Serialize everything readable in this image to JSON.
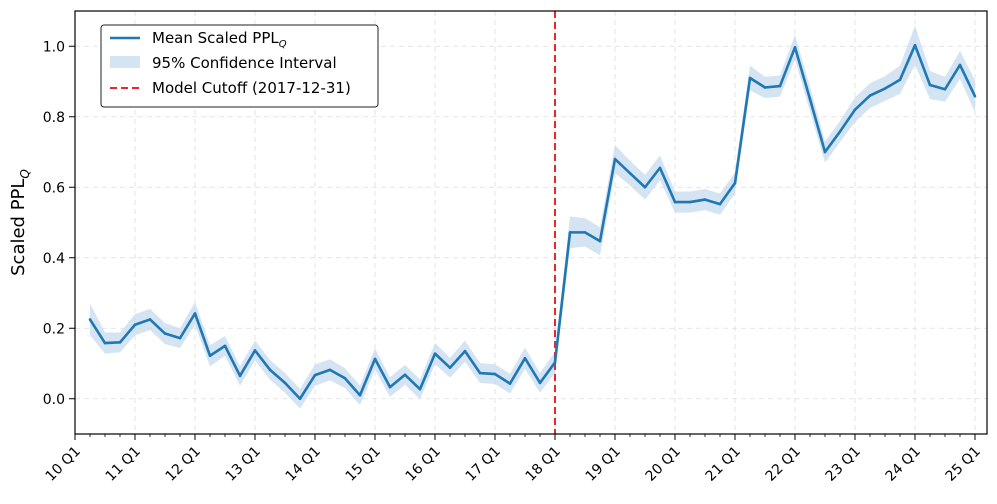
{
  "chart_data": {
    "type": "line",
    "ylabel": "Scaled PPL",
    "ylabel_subscript": "Q",
    "ylim": [
      -0.1,
      1.1
    ],
    "yticks": [
      0.0,
      0.2,
      0.4,
      0.6,
      0.8,
      1.0
    ],
    "ytick_labels": [
      "0.0",
      "0.2",
      "0.4",
      "0.6",
      "0.8",
      "1.0"
    ],
    "xlim": [
      2010.0,
      2025.2
    ],
    "xticks": [
      2010,
      2011,
      2012,
      2013,
      2014,
      2015,
      2016,
      2017,
      2018,
      2019,
      2020,
      2021,
      2022,
      2023,
      2024,
      2025
    ],
    "xtick_labels": [
      "10 Q1",
      "11 Q1",
      "12 Q1",
      "13 Q1",
      "14 Q1",
      "15 Q1",
      "16 Q1",
      "17 Q1",
      "18 Q1",
      "19 Q1",
      "20 Q1",
      "21 Q1",
      "22 Q1",
      "23 Q1",
      "24 Q1",
      "25 Q1"
    ],
    "grid": true,
    "legend_position": "top-left",
    "legend": [
      {
        "label": "Mean Scaled PPL",
        "subscript": "Q",
        "kind": "line"
      },
      {
        "label": "95% Confidence Interval",
        "kind": "band"
      },
      {
        "label": "Model Cutoff (2017-12-31)",
        "kind": "dashed"
      }
    ],
    "cutoff_x": 2018.0,
    "colors": {
      "line": "#1f77b4",
      "band": "#c6dbef",
      "cutoff": "#e8292b"
    },
    "series": [
      {
        "name": "Mean Scaled PPL",
        "x": [
          2010.25,
          2010.5,
          2010.75,
          2011.0,
          2011.25,
          2011.5,
          2011.75,
          2012.0,
          2012.25,
          2012.5,
          2012.75,
          2013.0,
          2013.25,
          2013.5,
          2013.75,
          2014.0,
          2014.25,
          2014.5,
          2014.75,
          2015.0,
          2015.25,
          2015.5,
          2015.75,
          2016.0,
          2016.25,
          2016.5,
          2016.75,
          2017.0,
          2017.25,
          2017.5,
          2017.75,
          2018.0,
          2018.25,
          2018.5,
          2018.75,
          2019.0,
          2019.25,
          2019.5,
          2019.75,
          2020.0,
          2020.25,
          2020.5,
          2020.75,
          2021.0,
          2021.25,
          2021.5,
          2021.75,
          2022.0,
          2022.25,
          2022.5,
          2022.75,
          2023.0,
          2023.25,
          2023.5,
          2023.75,
          2024.0,
          2024.25,
          2024.5,
          2024.75,
          2025.0
        ],
        "y": [
          0.225,
          0.158,
          0.16,
          0.21,
          0.225,
          0.185,
          0.172,
          0.242,
          0.122,
          0.15,
          0.065,
          0.137,
          0.082,
          0.045,
          0.0,
          0.067,
          0.082,
          0.058,
          0.01,
          0.113,
          0.033,
          0.068,
          0.027,
          0.128,
          0.088,
          0.135,
          0.073,
          0.07,
          0.043,
          0.115,
          0.045,
          0.103,
          0.472,
          0.472,
          0.447,
          0.68,
          0.64,
          0.6,
          0.655,
          0.558,
          0.558,
          0.565,
          0.552,
          0.612,
          0.91,
          0.883,
          0.887,
          0.997,
          0.85,
          0.7,
          0.758,
          0.82,
          0.86,
          0.88,
          0.905,
          1.003,
          0.89,
          0.878,
          0.947,
          0.858
        ],
        "ci_half_width": [
          0.045,
          0.03,
          0.028,
          0.03,
          0.03,
          0.03,
          0.028,
          0.032,
          0.03,
          0.028,
          0.028,
          0.028,
          0.028,
          0.028,
          0.028,
          0.03,
          0.03,
          0.028,
          0.028,
          0.03,
          0.028,
          0.028,
          0.028,
          0.03,
          0.028,
          0.03,
          0.028,
          0.028,
          0.028,
          0.03,
          0.028,
          0.03,
          0.045,
          0.04,
          0.04,
          0.04,
          0.035,
          0.035,
          0.035,
          0.03,
          0.03,
          0.03,
          0.03,
          0.03,
          0.035,
          0.03,
          0.03,
          0.035,
          0.035,
          0.03,
          0.03,
          0.035,
          0.035,
          0.035,
          0.04,
          0.055,
          0.04,
          0.035,
          0.04,
          0.045
        ]
      }
    ]
  }
}
